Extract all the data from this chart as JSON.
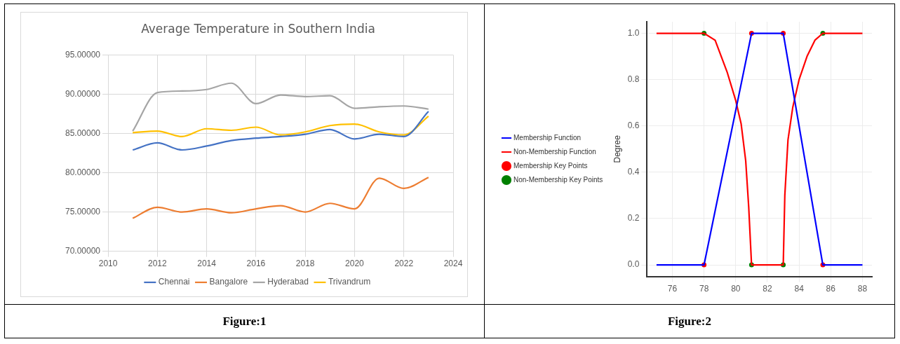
{
  "chart_data": [
    {
      "type": "line",
      "title": "Average Temperature in Southern India",
      "x": [
        2011,
        2012,
        2013,
        2014,
        2015,
        2016,
        2017,
        2018,
        2019,
        2020,
        2021,
        2022,
        2023
      ],
      "series": [
        {
          "name": "Chennai",
          "color": "#4472c4",
          "values": [
            82.9,
            83.8,
            82.9,
            83.4,
            84.1,
            84.4,
            84.6,
            84.9,
            85.5,
            84.3,
            84.9,
            84.6,
            87.8
          ]
        },
        {
          "name": "Bangalore",
          "color": "#ed7d31",
          "values": [
            74.2,
            75.6,
            75.0,
            75.4,
            74.9,
            75.4,
            75.8,
            75.0,
            76.1,
            75.4,
            79.3,
            78.0,
            79.4
          ]
        },
        {
          "name": "Hyderabad",
          "color": "#a5a5a5",
          "values": [
            85.3,
            90.2,
            90.4,
            90.6,
            91.4,
            88.8,
            89.9,
            89.7,
            89.8,
            88.2,
            88.4,
            88.5,
            88.1
          ]
        },
        {
          "name": "Trivandrum",
          "color": "#ffc000",
          "values": [
            85.1,
            85.3,
            84.6,
            85.6,
            85.4,
            85.8,
            84.8,
            85.2,
            86.0,
            86.2,
            85.2,
            84.8,
            87.2
          ]
        }
      ],
      "xlim": [
        2010,
        2024
      ],
      "xticks": [
        2010,
        2012,
        2014,
        2016,
        2018,
        2020,
        2022,
        2024
      ],
      "ylim": [
        70,
        95
      ],
      "yticks": [
        {
          "value": 70,
          "label": "70.00000"
        },
        {
          "value": 75,
          "label": "75.00000"
        },
        {
          "value": 80,
          "label": "80.00000"
        },
        {
          "value": 85,
          "label": "85.00000"
        },
        {
          "value": 90,
          "label": "90.00000"
        },
        {
          "value": 95,
          "label": "95.00000"
        }
      ],
      "grid": true,
      "legend": "bottom",
      "marker": "none",
      "line_style": "solid",
      "annotations": [
        "Figure:1"
      ]
    },
    {
      "type": "line",
      "ylabel": "Degree",
      "series": [
        {
          "name": "Membership Function",
          "color": "#0000ff",
          "marker": "none",
          "x": [
            75,
            78,
            81,
            83,
            85.5,
            88
          ],
          "values": [
            0,
            0,
            1,
            1,
            0,
            0
          ]
        },
        {
          "name": "Non-Membership Function",
          "color": "#ff0000",
          "marker": "none",
          "x": [
            75,
            78,
            78.7,
            79.47,
            80,
            80.34,
            80.63,
            80.82,
            81,
            83,
            83.1,
            83.3,
            83.6,
            84,
            84.5,
            85,
            85.5,
            88
          ],
          "values": [
            1,
            1,
            0.97,
            0.83,
            0.71,
            0.61,
            0.45,
            0.25,
            0,
            0,
            0.3,
            0.54,
            0.68,
            0.8,
            0.9,
            0.97,
            1,
            1
          ]
        },
        {
          "name": "Membership Key Points",
          "type": "scatter",
          "color": "#ff0000",
          "marker": "circle",
          "x": [
            78,
            81,
            83,
            85.5
          ],
          "values": [
            0,
            1,
            1,
            0
          ]
        },
        {
          "name": "Non-Membership Key Points",
          "type": "scatter",
          "color": "#008000",
          "marker": "circle",
          "x": [
            78,
            81,
            83,
            85.5
          ],
          "values": [
            1,
            0,
            0,
            1
          ]
        }
      ],
      "xlim": [
        74.4,
        88.6
      ],
      "xticks": [
        76,
        78,
        80,
        82,
        84,
        86,
        88
      ],
      "ylim": [
        -0.05,
        1.05
      ],
      "yticks": [
        {
          "value": 0,
          "label": "0.0"
        },
        {
          "value": 0.2,
          "label": "0.2"
        },
        {
          "value": 0.4,
          "label": "0.4"
        },
        {
          "value": 0.6,
          "label": "0.6"
        },
        {
          "value": 0.8,
          "label": "0.8"
        },
        {
          "value": 1,
          "label": "1.0"
        }
      ],
      "grid": true,
      "legend": "left",
      "line_style": "solid",
      "annotations": [
        "Figure:2"
      ]
    }
  ]
}
